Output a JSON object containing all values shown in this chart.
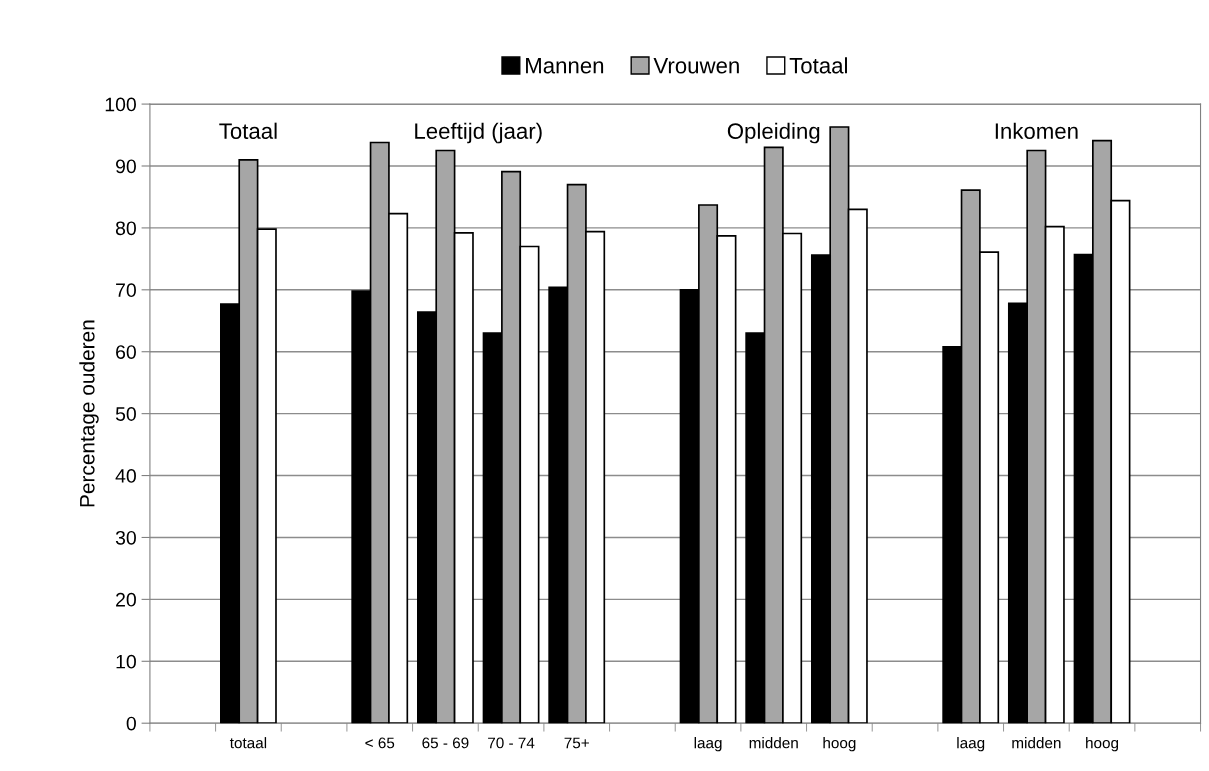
{
  "chart_data": {
    "type": "bar",
    "ylabel": "Percentage ouderen",
    "categories": [
      null,
      "totaal",
      null,
      "< 65",
      "65 - 69",
      "70 - 74",
      "75+",
      null,
      "laag",
      "midden",
      "hoog",
      null,
      "laag",
      "midden",
      "hoog",
      null
    ],
    "series": [
      {
        "name": "Mannen",
        "color": "#000000",
        "values": [
          null,
          67.7,
          null,
          69.8,
          66.4,
          63.0,
          70.4,
          null,
          70.0,
          63.0,
          75.6,
          null,
          60.8,
          67.8,
          75.7,
          null
        ]
      },
      {
        "name": "Vrouwen",
        "color": "#a6a6a6",
        "values": [
          null,
          91.0,
          null,
          93.8,
          92.5,
          89.1,
          87.0,
          null,
          83.7,
          93.0,
          96.3,
          null,
          86.1,
          92.5,
          94.1,
          null
        ]
      },
      {
        "name": "Totaal",
        "color": "#ffffff",
        "values": [
          null,
          79.8,
          null,
          82.3,
          79.2,
          77.0,
          79.4,
          null,
          78.7,
          79.1,
          83.0,
          null,
          76.1,
          80.2,
          84.4,
          null
        ]
      }
    ],
    "annotations": [
      "Totaal",
      "Leeftijd (jaar)",
      "Opleiding",
      "Inkomen"
    ],
    "ylim": [
      0,
      100
    ],
    "yticks": [
      0,
      10,
      20,
      30,
      40,
      50,
      60,
      70,
      80,
      90,
      100
    ],
    "grid": "y",
    "legend": "top"
  }
}
